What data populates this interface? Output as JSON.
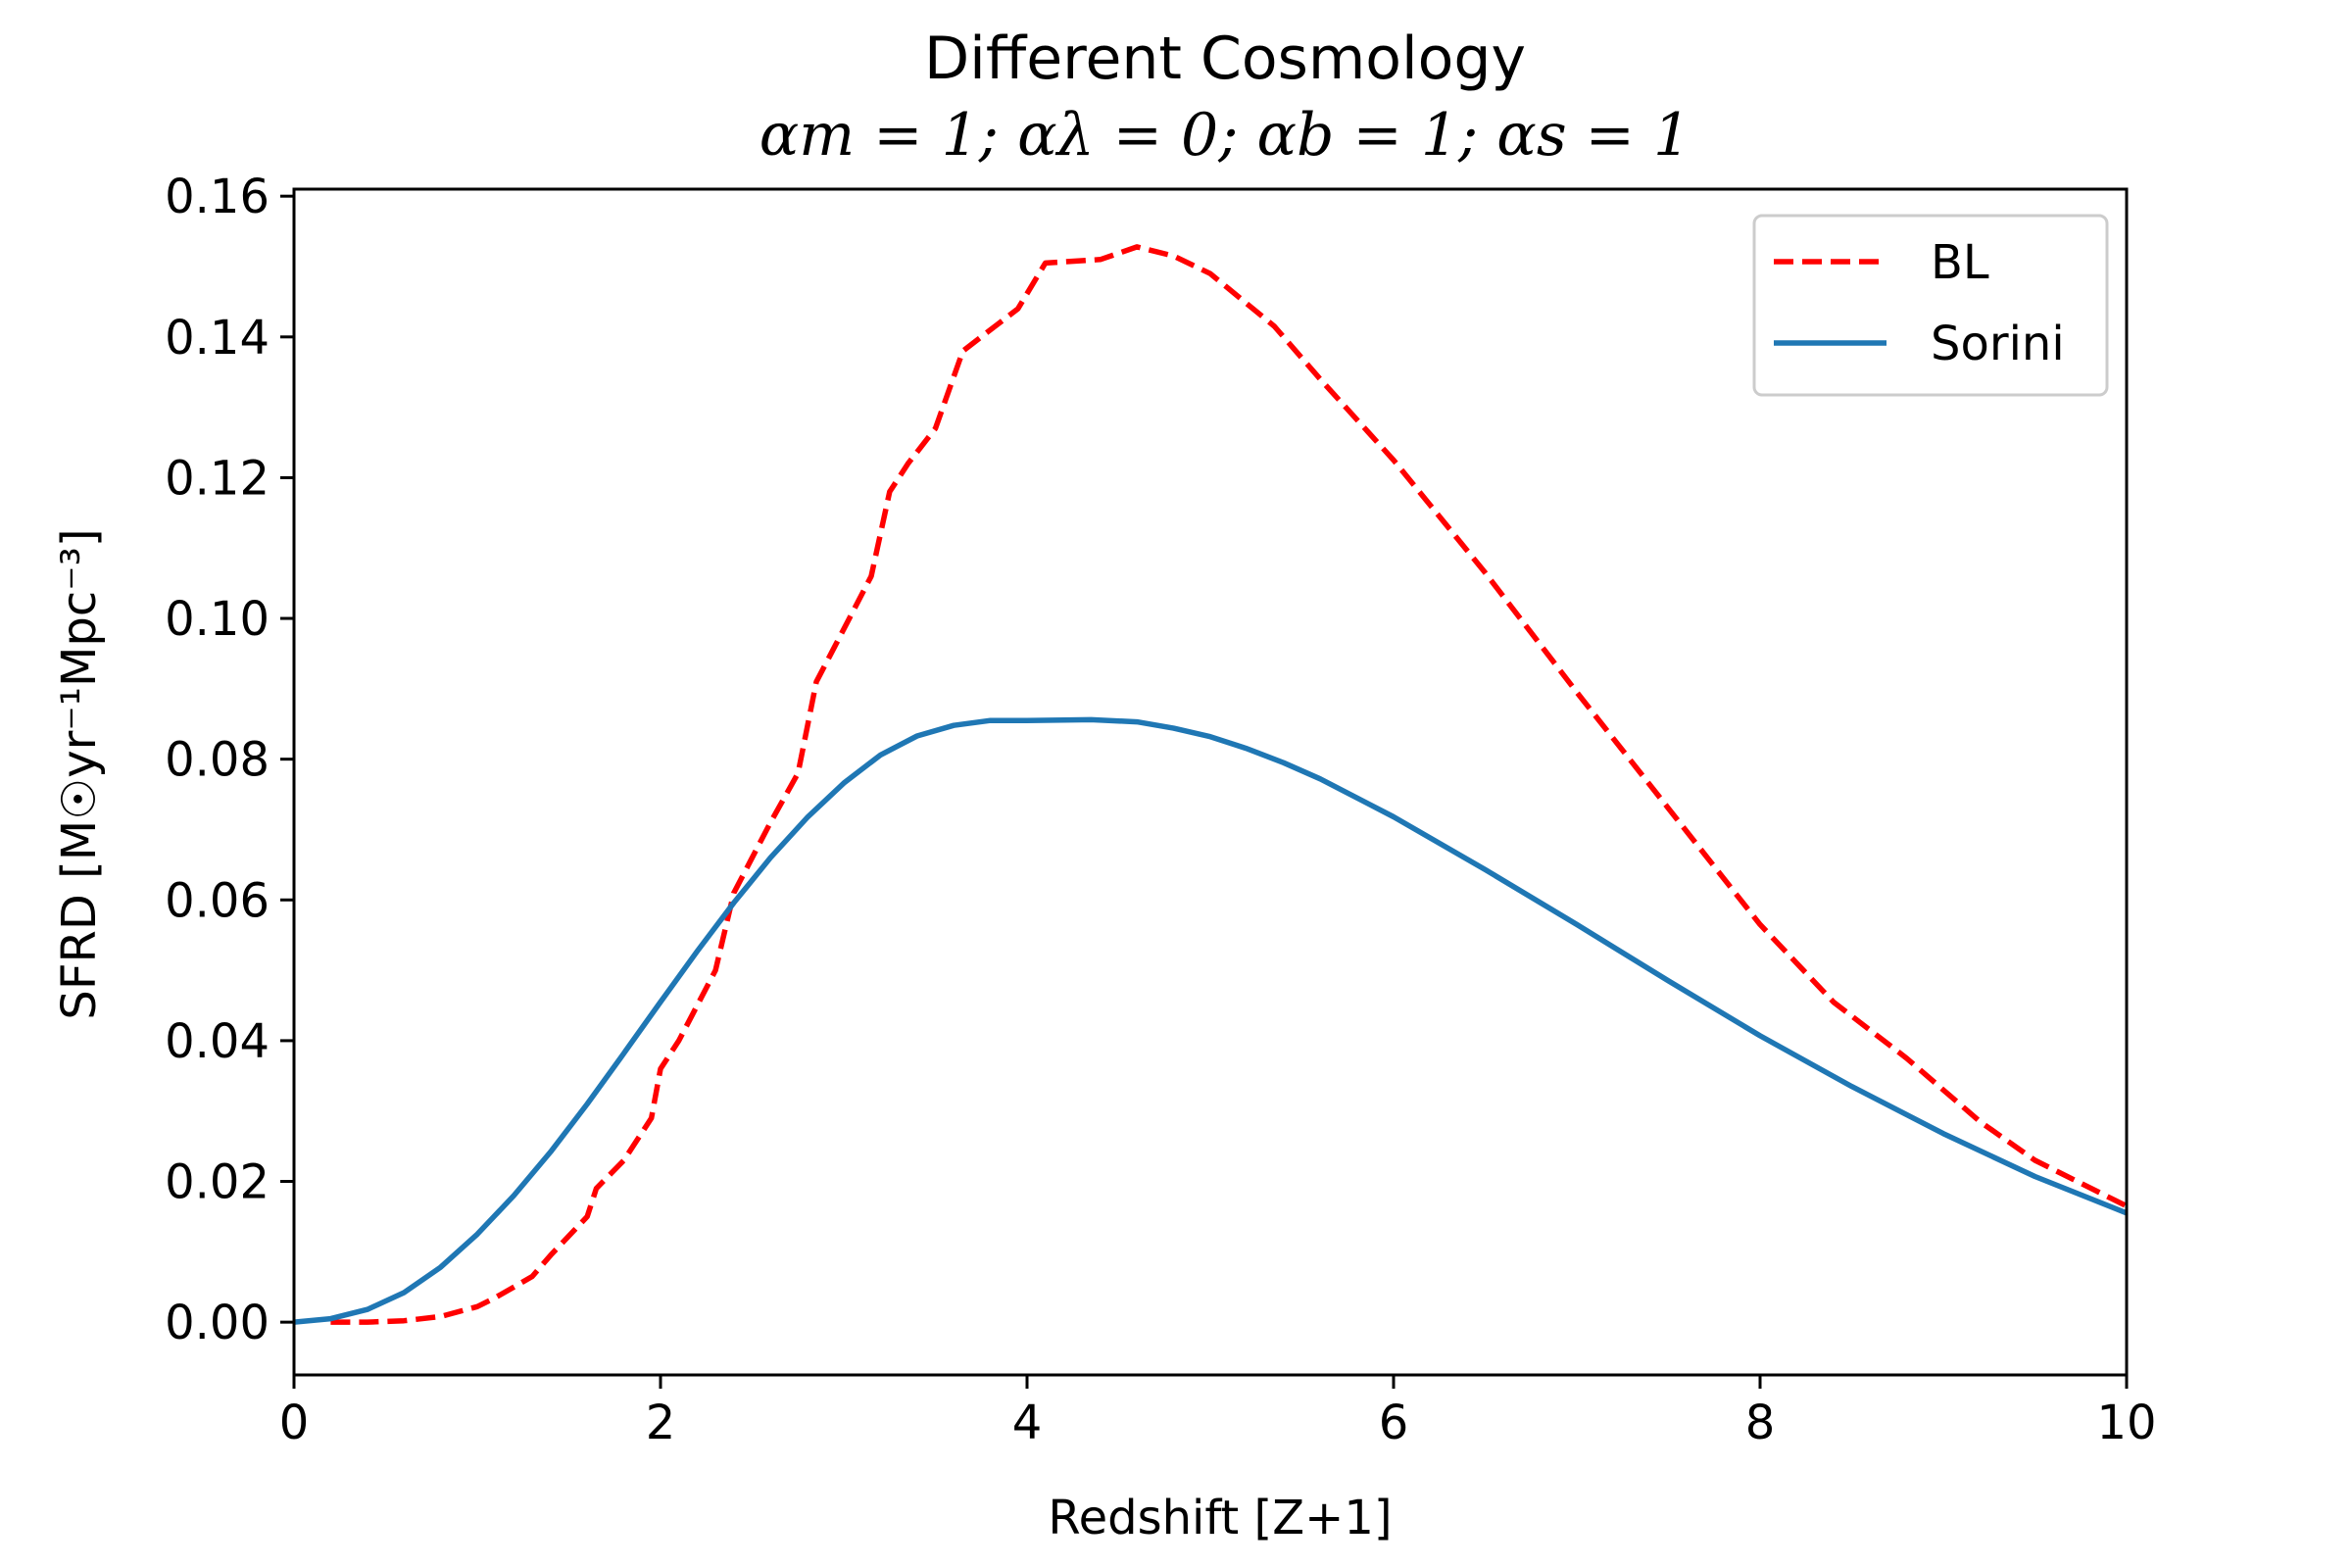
{
  "chart_data": {
    "type": "line",
    "title": "Different Cosmology",
    "subtitle": "αm = 1; αλ = 0; αb = 1; αs = 1",
    "xlabel": "Redshift [Z+1]",
    "ylabel": "SFRD [M☉yr⁻¹Mpc⁻³]",
    "xlim": [
      0,
      10
    ],
    "ylim": [
      -0.0075,
      0.161
    ],
    "xticks": [
      0,
      2,
      4,
      6,
      8,
      10
    ],
    "xtick_labels": [
      "0",
      "2",
      "4",
      "6",
      "8",
      "10"
    ],
    "yticks": [
      0.0,
      0.02,
      0.04,
      0.06,
      0.08,
      0.1,
      0.12,
      0.14,
      0.16
    ],
    "ytick_labels": [
      "0.00",
      "0.02",
      "0.04",
      "0.06",
      "0.08",
      "0.10",
      "0.12",
      "0.14",
      "0.16"
    ],
    "grid": false,
    "legend_position": "top-right",
    "series": [
      {
        "name": "BL",
        "color": "#ff0000",
        "style": "dashed",
        "points": [
          [
            0.2,
            0.0
          ],
          [
            0.4,
            0.0
          ],
          [
            0.6,
            0.0002
          ],
          [
            0.8,
            0.0008
          ],
          [
            1.0,
            0.0022
          ],
          [
            1.1,
            0.0035
          ],
          [
            1.3,
            0.0065
          ],
          [
            1.4,
            0.0095
          ],
          [
            1.6,
            0.015
          ],
          [
            1.65,
            0.019
          ],
          [
            1.8,
            0.023
          ],
          [
            1.95,
            0.029
          ],
          [
            2.0,
            0.036
          ],
          [
            2.1,
            0.04
          ],
          [
            2.3,
            0.05
          ],
          [
            2.4,
            0.061
          ],
          [
            2.5,
            0.066
          ],
          [
            2.6,
            0.071
          ],
          [
            2.75,
            0.078
          ],
          [
            2.85,
            0.091
          ],
          [
            2.95,
            0.096
          ],
          [
            3.05,
            0.101
          ],
          [
            3.15,
            0.106
          ],
          [
            3.25,
            0.118
          ],
          [
            3.35,
            0.122
          ],
          [
            3.5,
            0.127
          ],
          [
            3.65,
            0.138
          ],
          [
            3.8,
            0.141
          ],
          [
            3.95,
            0.144
          ],
          [
            4.1,
            0.1505
          ],
          [
            4.4,
            0.151
          ],
          [
            4.6,
            0.1528
          ],
          [
            4.8,
            0.1515
          ],
          [
            5.0,
            0.149
          ],
          [
            5.35,
            0.1415
          ],
          [
            5.6,
            0.134
          ],
          [
            6.0,
            0.1225
          ],
          [
            6.5,
            0.1065
          ],
          [
            7.0,
            0.0895
          ],
          [
            7.5,
            0.073
          ],
          [
            8.0,
            0.0565
          ],
          [
            8.4,
            0.0455
          ],
          [
            8.8,
            0.0375
          ],
          [
            9.2,
            0.0285
          ],
          [
            9.5,
            0.023
          ],
          [
            10.0,
            0.0165
          ]
        ]
      },
      {
        "name": "Sorini",
        "color": "#1f77b4",
        "style": "solid",
        "points": [
          [
            0.0,
            0.0
          ],
          [
            0.2,
            0.0005
          ],
          [
            0.4,
            0.0018
          ],
          [
            0.6,
            0.0042
          ],
          [
            0.8,
            0.0078
          ],
          [
            1.0,
            0.0125
          ],
          [
            1.2,
            0.018
          ],
          [
            1.4,
            0.0242
          ],
          [
            1.6,
            0.031
          ],
          [
            1.8,
            0.0382
          ],
          [
            2.0,
            0.0455
          ],
          [
            2.2,
            0.0527
          ],
          [
            2.4,
            0.0596
          ],
          [
            2.6,
            0.066
          ],
          [
            2.8,
            0.0717
          ],
          [
            3.0,
            0.0766
          ],
          [
            3.2,
            0.0806
          ],
          [
            3.4,
            0.0833
          ],
          [
            3.6,
            0.0848
          ],
          [
            3.8,
            0.0855
          ],
          [
            4.0,
            0.0855
          ],
          [
            4.35,
            0.0856
          ],
          [
            4.6,
            0.0853
          ],
          [
            4.8,
            0.0844
          ],
          [
            5.0,
            0.0832
          ],
          [
            5.2,
            0.0815
          ],
          [
            5.4,
            0.0795
          ],
          [
            5.6,
            0.0772
          ],
          [
            6.0,
            0.0718
          ],
          [
            6.5,
            0.0643
          ],
          [
            7.0,
            0.0565
          ],
          [
            7.5,
            0.0485
          ],
          [
            8.0,
            0.0407
          ],
          [
            8.5,
            0.0335
          ],
          [
            9.0,
            0.0268
          ],
          [
            9.5,
            0.0207
          ],
          [
            10.0,
            0.0155
          ]
        ]
      }
    ]
  }
}
